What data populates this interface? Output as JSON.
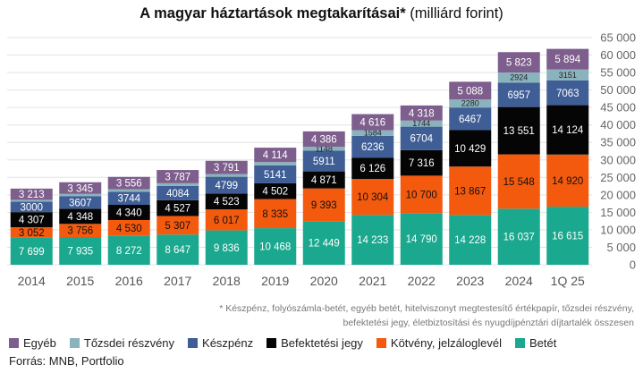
{
  "header": {
    "title_bold": "A magyar háztartások megtakarításai*",
    "title_normal": "(milliárd forint)"
  },
  "footnote": [
    "* Készpénz, folyószámla-betét, egyéb betét, hitelviszonyt megtestesítő értékpapír, tőzsdei részvény,",
    "befektetési jegy, életbiztosítási és nyugdíjpénztári díjtartalék összesen"
  ],
  "source": "Forrás: MNB, Portfolio",
  "chart_data": {
    "type": "bar",
    "stacked": true,
    "categories": [
      "2014",
      "2015",
      "2016",
      "2017",
      "2018",
      "2019",
      "2020",
      "2021",
      "2022",
      "2023",
      "2024",
      "1Q 25"
    ],
    "ylim": [
      0,
      65000
    ],
    "yticks": [
      0,
      5000,
      10000,
      15000,
      20000,
      25000,
      30000,
      35000,
      40000,
      45000,
      50000,
      55000,
      60000,
      65000
    ],
    "ytick_labels": [
      "0",
      "5 000",
      "10 000",
      "15 000",
      "20 000",
      "25 000",
      "30 000",
      "35 000",
      "40 000",
      "45 000",
      "50 000",
      "55 000",
      "60 000",
      "65 000"
    ],
    "grid": true,
    "legend_position": "bottom",
    "series": [
      {
        "name": "Betét",
        "color": "#1aa88e",
        "text_color": "#ffffff",
        "values": [
          7699,
          7935,
          8272,
          8647,
          9836,
          10468,
          12449,
          14233,
          14790,
          14228,
          16037,
          16615
        ],
        "labels": [
          "7 699",
          "7 935",
          "8 272",
          "8 647",
          "9 836",
          "10 468",
          "12 449",
          "14 233",
          "14 790",
          "14 228",
          "16 037",
          "16 615"
        ]
      },
      {
        "name": "Kötvény, jelzáloglevél",
        "color": "#f45a0e",
        "text_color": "#111111",
        "values": [
          3052,
          3756,
          4530,
          5307,
          6017,
          8335,
          9393,
          10304,
          10700,
          13867,
          15548,
          14920
        ],
        "labels": [
          "3 052",
          "3 756",
          "4 530",
          "5 307",
          "6 017",
          "8 335",
          "9 393",
          "10 304",
          "10 700",
          "13 867",
          "15 548",
          "14 920"
        ]
      },
      {
        "name": "Befektetési jegy",
        "color": "#050505",
        "text_color": "#ffffff",
        "values": [
          4307,
          4348,
          4340,
          4527,
          4523,
          4502,
          4871,
          6126,
          7316,
          10429,
          13551,
          14124
        ],
        "labels": [
          "4 307",
          "4 348",
          "4 340",
          "4 527",
          "4 523",
          "4 502",
          "4 871",
          "6 126",
          "7 316",
          "10 429",
          "13 551",
          "14 124"
        ]
      },
      {
        "name": "Készpénz",
        "color": "#3f5e96",
        "text_color": "#ffffff",
        "values": [
          3000,
          3607,
          3744,
          4084,
          4799,
          5141,
          5911,
          6236,
          6704,
          6467,
          6957,
          7063
        ],
        "labels": [
          "3000",
          "3607",
          "3744",
          "4084",
          "4799",
          "5141",
          "5911",
          "6236",
          "6704",
          "6467",
          "6957",
          "7063"
        ]
      },
      {
        "name": "Tőzsdei részvény",
        "color": "#8bb3bd",
        "text_color": "#222222",
        "values": [
          520,
          620,
          700,
          760,
          780,
          935,
          1148,
          1584,
          1744,
          2280,
          2924,
          3151
        ],
        "labels": [
          "",
          "",
          "",
          "",
          "",
          "",
          "1148",
          "1584",
          "1744",
          "2280",
          "2924",
          "3151"
        ]
      },
      {
        "name": "Egyéb",
        "color": "#7d5e8c",
        "text_color": "#ffffff",
        "values": [
          3213,
          3345,
          3556,
          3787,
          3791,
          4114,
          4386,
          4616,
          4318,
          5088,
          5823,
          5894
        ],
        "labels": [
          "3 213",
          "3 345",
          "3 556",
          "3 787",
          "3 791",
          "4 114",
          "4 386",
          "4 616",
          "4 318",
          "5 088",
          "5 823",
          "5 894"
        ]
      }
    ],
    "legend_order": [
      "Egyéb",
      "Tőzsdei részvény",
      "Készpénz",
      "Befektetési jegy",
      "Kötvény, jelzáloglevél",
      "Betét"
    ]
  }
}
